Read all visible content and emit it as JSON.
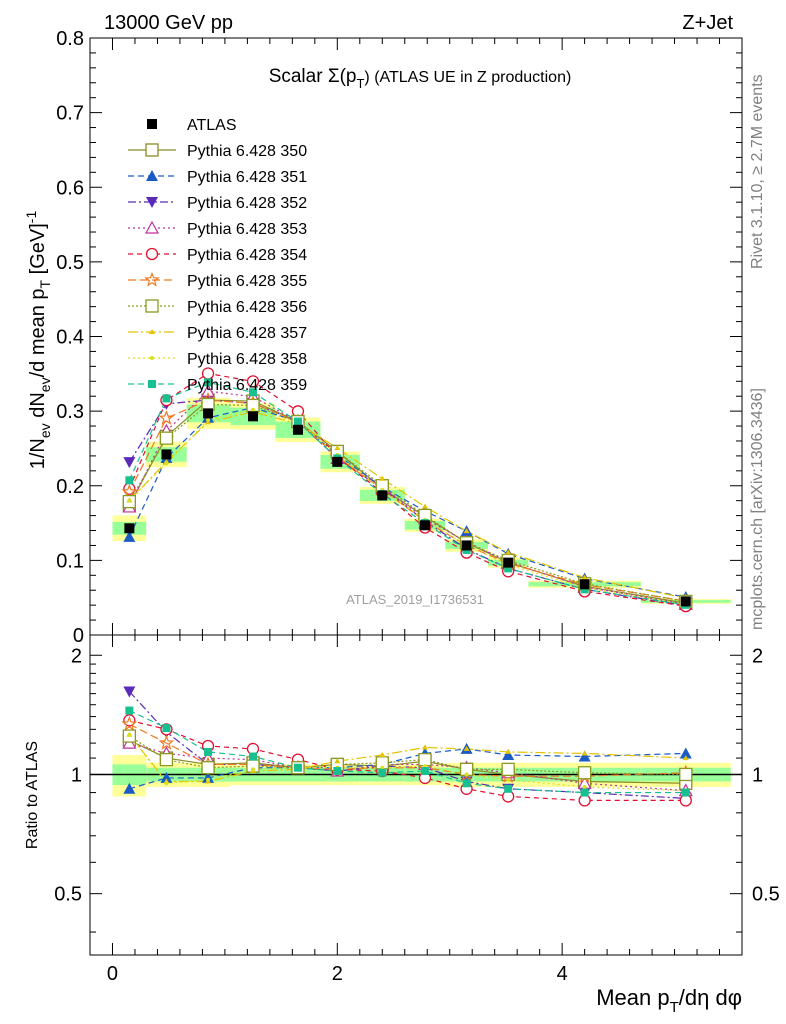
{
  "header": {
    "left": "13000 GeV pp",
    "right": "Z+Jet"
  },
  "side": {
    "top": "Rivet 3.1.10, ≥ 2.7M events",
    "bottom": "mcplots.cern.ch [arXiv:1306.3436]"
  },
  "watermark": "ATLAS_2019_I1736531",
  "chart_data": {
    "type": "scatter",
    "title": "Scalar Σ(p_T) (ATLAS UE in Z production)",
    "title_parts": {
      "pre": "Scalar Σ(p",
      "sub": "T",
      "post": ") (ATLAS UE in Z production)"
    },
    "xlabel": "Mean p_T/dη dφ",
    "xlabel_parts": {
      "pre": "Mean p",
      "sub": "T",
      "post": "/dη dφ"
    },
    "ylabel": "1/N_ev dN_ev/d mean p_T [GeV]^-1",
    "ylabel_parts": [
      "1/N",
      "ev",
      " dN",
      "ev",
      "/d mean p",
      "T",
      " [GeV]",
      "-1"
    ],
    "ratio_ylabel": "Ratio to ATLAS",
    "xlim": [
      -0.2,
      5.6
    ],
    "ylim": [
      0,
      0.8
    ],
    "ratio_ylim": [
      0.35,
      2.25
    ],
    "xticks": [
      "0",
      "2",
      "4"
    ],
    "yticks": [
      "0",
      "0.1",
      "0.2",
      "0.3",
      "0.4",
      "0.5",
      "0.6",
      "0.7",
      "0.8"
    ],
    "ratio_yticks": [
      "0.5",
      "1",
      "2"
    ],
    "legend_position": "top-left",
    "x": [
      0.15,
      0.48,
      0.85,
      1.25,
      1.65,
      2.0,
      2.4,
      2.78,
      3.15,
      3.52,
      4.2,
      5.1
    ],
    "xedges": [
      0.0,
      0.3,
      0.66,
      1.05,
      1.45,
      1.85,
      2.2,
      2.6,
      2.96,
      3.34,
      3.7,
      4.7,
      5.5
    ],
    "reference": {
      "name": "ATLAS",
      "values": [
        0.143,
        0.242,
        0.297,
        0.293,
        0.275,
        0.232,
        0.187,
        0.147,
        0.12,
        0.097,
        0.068,
        0.045
      ],
      "band_inner": [
        0.06,
        0.04,
        0.04,
        0.04,
        0.04,
        0.04,
        0.04,
        0.04,
        0.04,
        0.04,
        0.04,
        0.04
      ],
      "band_outer": [
        0.12,
        0.07,
        0.07,
        0.06,
        0.06,
        0.06,
        0.06,
        0.06,
        0.07,
        0.07,
        0.07,
        0.07
      ]
    },
    "series": [
      {
        "name": "Pythia 6.428 350",
        "color": "#8b8b24",
        "marker": "square-open",
        "dash": "",
        "ratio": [
          1.22,
          1.1,
          1.06,
          1.07,
          1.04,
          1.06,
          1.05,
          1.08,
          1.03,
          1.0,
          0.96,
          0.95
        ]
      },
      {
        "name": "Pythia 6.428 351",
        "color": "#1a5cc4",
        "marker": "triangle-up",
        "dash": "6,4",
        "ratio": [
          0.92,
          0.98,
          0.98,
          1.04,
          1.04,
          1.04,
          1.06,
          1.13,
          1.16,
          1.12,
          1.11,
          1.13
        ]
      },
      {
        "name": "Pythia 6.428 352",
        "color": "#5a2ab8",
        "marker": "triangle-down",
        "dash": "8,3,2,3",
        "ratio": [
          1.62,
          1.28,
          1.06,
          1.06,
          1.04,
          1.02,
          1.05,
          1.04,
          0.96,
          0.92,
          0.9,
          0.87
        ]
      },
      {
        "name": "Pythia 6.428 353",
        "color": "#c2329a",
        "marker": "triangle-up-open",
        "dash": "2,3",
        "ratio": [
          1.2,
          1.13,
          1.1,
          1.09,
          1.04,
          1.02,
          1.06,
          1.06,
          1.04,
          1.01,
          0.95,
          0.91
        ]
      },
      {
        "name": "Pythia 6.428 354",
        "color": "#e01030",
        "marker": "circle-open",
        "dash": "5,4",
        "ratio": [
          1.37,
          1.3,
          1.18,
          1.16,
          1.09,
          1.03,
          1.02,
          0.98,
          0.92,
          0.88,
          0.86,
          0.86
        ]
      },
      {
        "name": "Pythia 6.428 355",
        "color": "#f07820",
        "marker": "star-open",
        "dash": "8,4",
        "ratio": [
          1.34,
          1.2,
          1.06,
          1.06,
          1.04,
          1.03,
          1.04,
          1.04,
          1.0,
          0.99,
          0.99,
          1.01
        ]
      },
      {
        "name": "Pythia 6.428 356",
        "color": "#8a9a20",
        "marker": "square-open",
        "dash": "2,2",
        "ratio": [
          1.25,
          1.09,
          1.04,
          1.05,
          1.04,
          1.06,
          1.07,
          1.09,
          1.03,
          1.03,
          1.01,
          1.0
        ]
      },
      {
        "name": "Pythia 6.428 357",
        "color": "#e6c200",
        "marker": "tri-small",
        "dash": "10,3,2,3",
        "ratio": [
          1.26,
          0.96,
          0.96,
          1.02,
          1.03,
          1.08,
          1.12,
          1.17,
          1.16,
          1.14,
          1.13,
          1.1
        ]
      },
      {
        "name": "Pythia 6.428 358",
        "color": "#d8e020",
        "marker": "dot",
        "dash": "2,3",
        "ratio": [
          1.26,
          0.95,
          0.97,
          1.03,
          1.04,
          1.04,
          1.04,
          1.05,
          1.0,
          0.97,
          0.93,
          0.91
        ]
      },
      {
        "name": "Pythia 6.428 359",
        "color": "#18c090",
        "marker": "square",
        "dash": "6,4",
        "ratio": [
          1.45,
          1.31,
          1.14,
          1.11,
          1.04,
          1.02,
          1.01,
          1.02,
          0.95,
          0.92,
          0.9,
          0.9
        ]
      }
    ]
  }
}
